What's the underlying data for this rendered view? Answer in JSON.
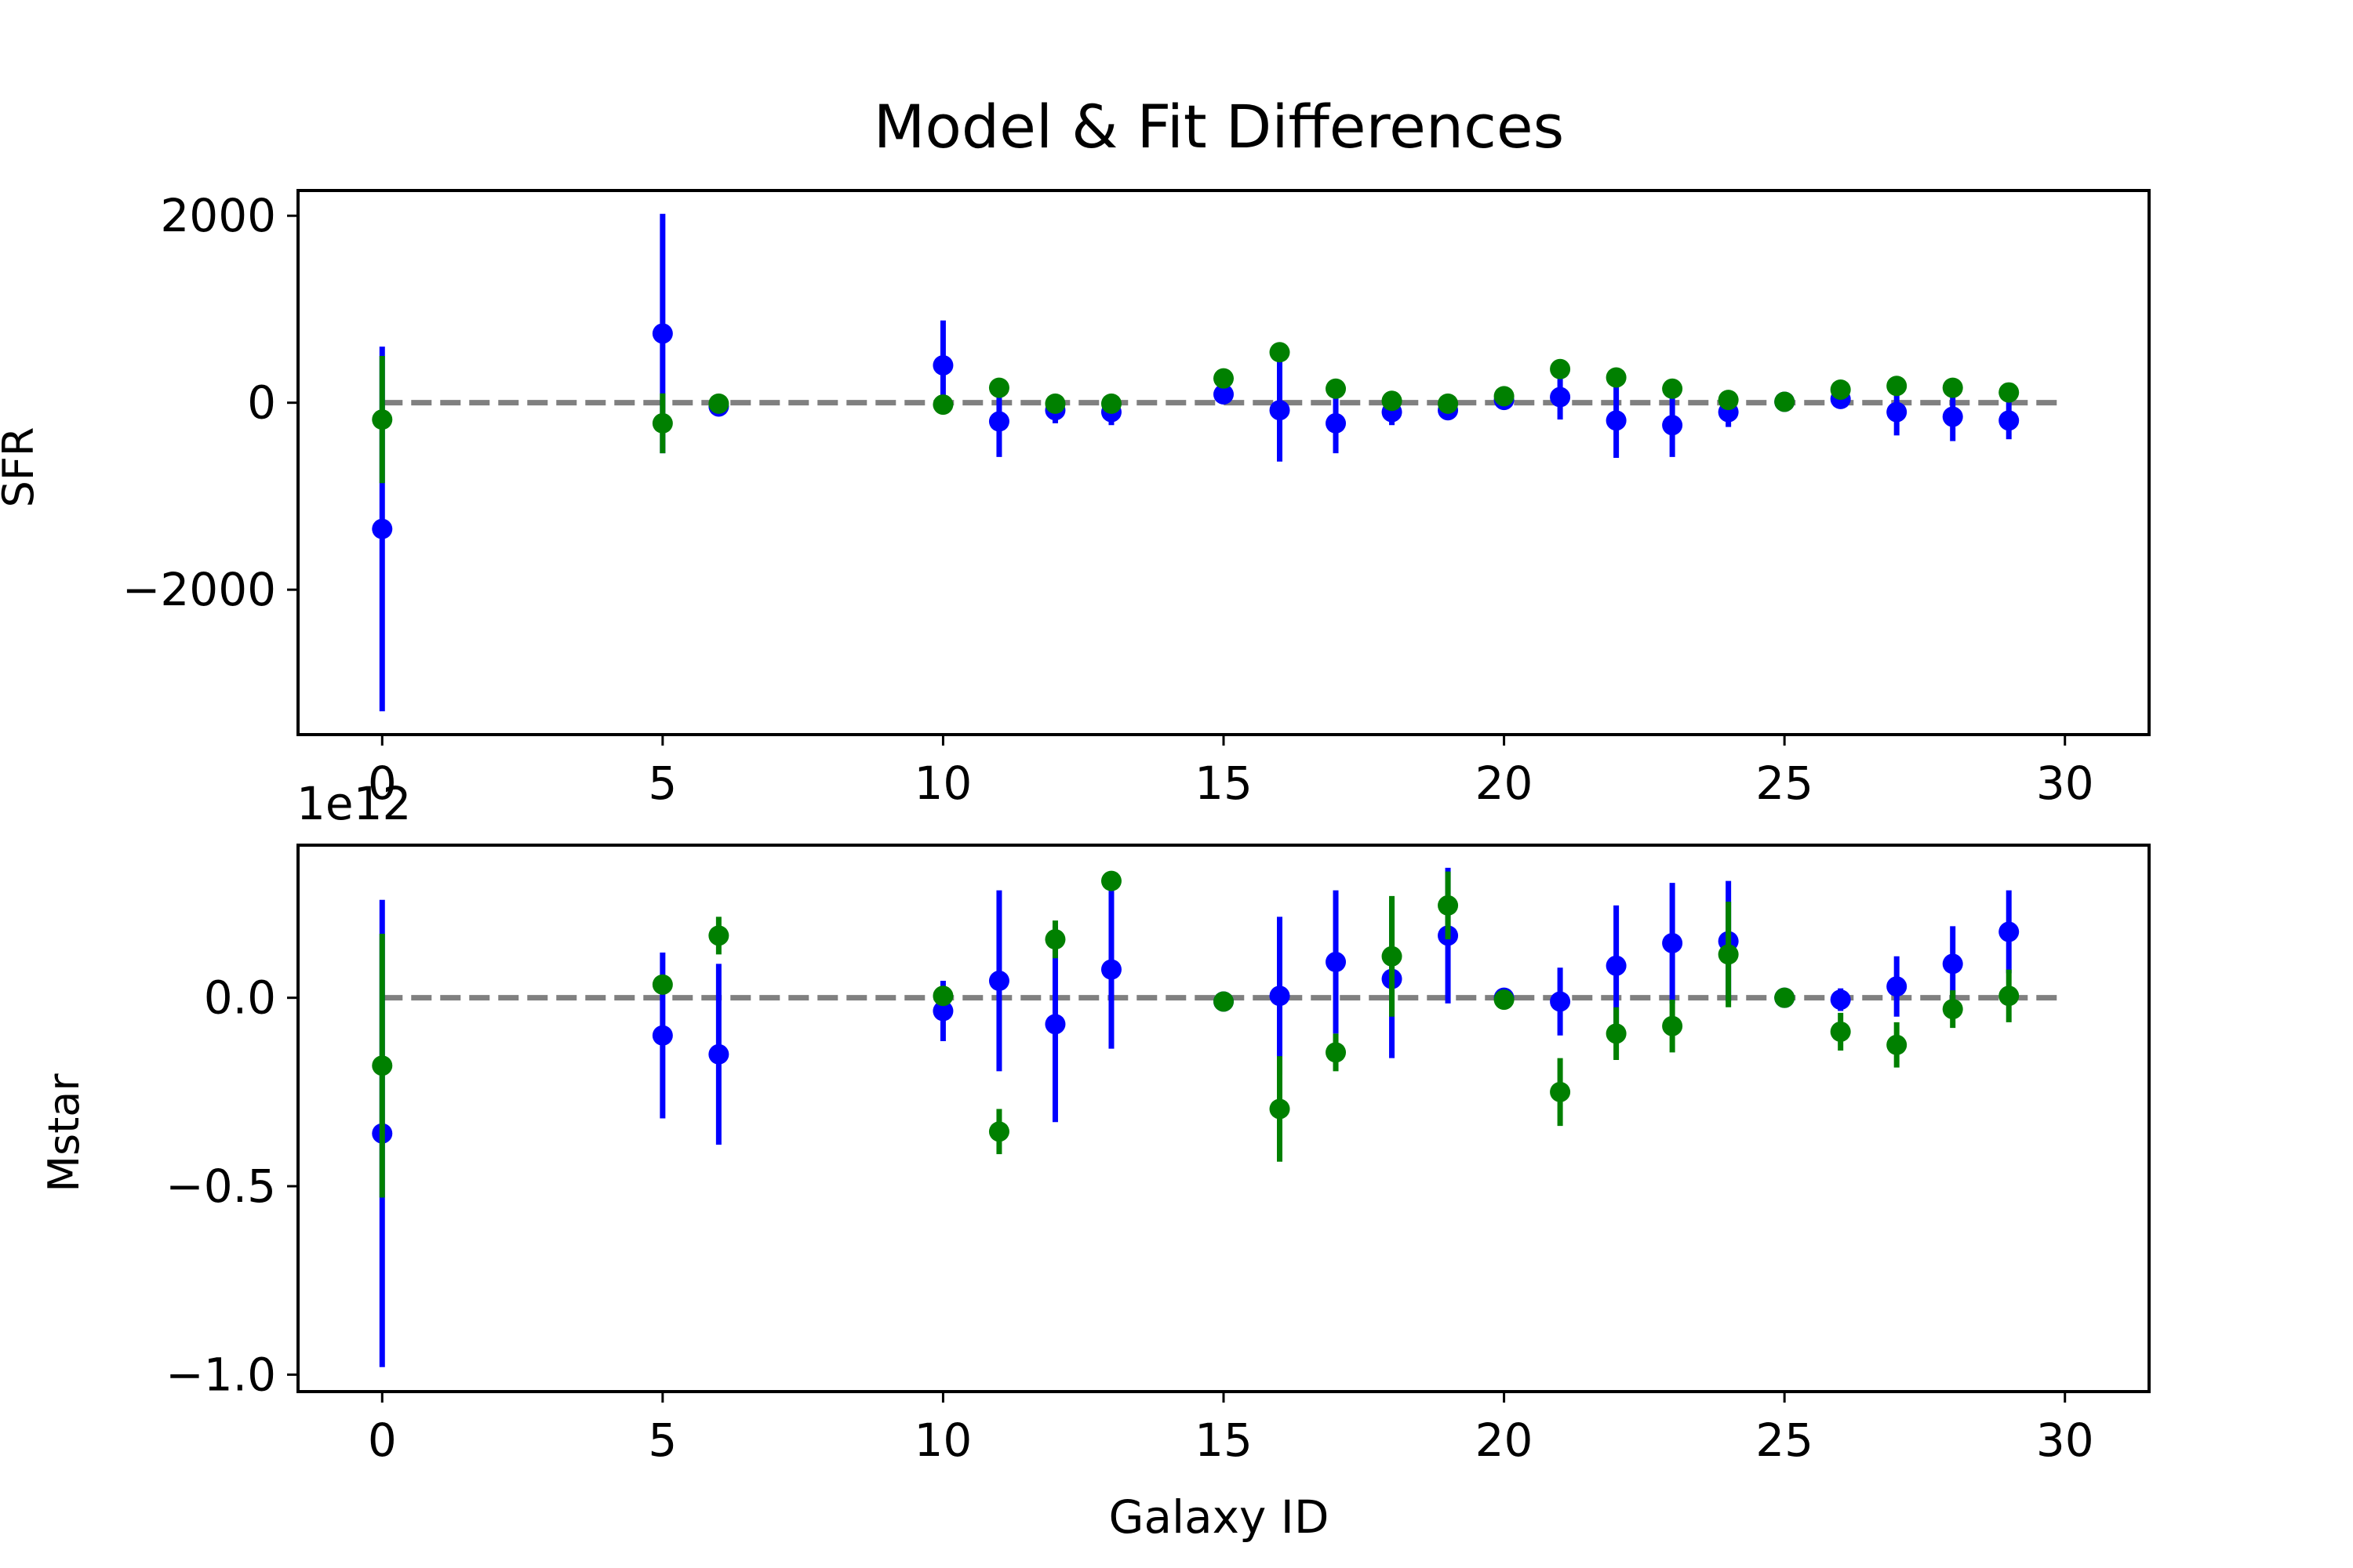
{
  "title": "Model & Fit Differences",
  "xlabel": "Galaxy ID",
  "colors": {
    "series_a": "#0000ff",
    "series_b": "#008000",
    "reference": "#808080"
  },
  "chart_data": [
    {
      "type": "scatter",
      "ylabel": "SFR",
      "xlim": [
        -1.5,
        31.5
      ],
      "ylim": [
        -3550,
        2270
      ],
      "xticks": [
        0,
        5,
        10,
        15,
        20,
        25,
        30
      ],
      "xtick_labels": [
        "0",
        "5",
        "10",
        "15",
        "20",
        "25",
        "30"
      ],
      "yticks": [
        -2000,
        0,
        2000
      ],
      "ytick_labels": [
        "−2000",
        "0",
        "2000"
      ],
      "reference_line": 0,
      "x": [
        0,
        5,
        6,
        10,
        11,
        12,
        13,
        15,
        16,
        17,
        18,
        19,
        20,
        21,
        22,
        23,
        24,
        25,
        26,
        27,
        28,
        29
      ],
      "series": [
        {
          "values": [
            -1350,
            740,
            -40,
            400,
            -200,
            -80,
            -100,
            90,
            -80,
            -220,
            -100,
            -80,
            30,
            60,
            -190,
            -240,
            -100,
            10,
            40,
            -100,
            -150,
            -190
          ],
          "errors": [
            1950,
            1280,
            40,
            480,
            380,
            140,
            140,
            100,
            550,
            320,
            140,
            100,
            40,
            240,
            400,
            340,
            160,
            40,
            60,
            250,
            260,
            200
          ]
        },
        {
          "values": [
            -180,
            -220,
            -10,
            -20,
            160,
            -10,
            -10,
            260,
            540,
            150,
            20,
            -10,
            70,
            360,
            270,
            150,
            30,
            10,
            140,
            180,
            160,
            110
          ],
          "errors": [
            680,
            320,
            40,
            40,
            40,
            40,
            40,
            40,
            40,
            40,
            40,
            40,
            40,
            40,
            40,
            40,
            40,
            40,
            40,
            40,
            40,
            40
          ]
        }
      ]
    },
    {
      "type": "scatter",
      "ylabel": "Mstar",
      "offset_label": "1e12",
      "xlim": [
        -1.5,
        31.5
      ],
      "ylim": [
        -1.045,
        0.405
      ],
      "xticks": [
        0,
        5,
        10,
        15,
        20,
        25,
        30
      ],
      "xtick_labels": [
        "0",
        "5",
        "10",
        "15",
        "20",
        "25",
        "30"
      ],
      "yticks": [
        -1.0,
        -0.5,
        0.0
      ],
      "ytick_labels": [
        "−1.0",
        "−0.5",
        "0.0"
      ],
      "reference_line": 0,
      "x": [
        0,
        5,
        6,
        10,
        11,
        12,
        13,
        15,
        16,
        17,
        18,
        19,
        20,
        21,
        22,
        23,
        24,
        25,
        26,
        27,
        28,
        29
      ],
      "series": [
        {
          "values": [
            -0.36,
            -0.1,
            -0.15,
            -0.035,
            0.045,
            -0.07,
            0.075,
            -0.01,
            0.005,
            0.095,
            0.05,
            0.165,
            0.0,
            -0.01,
            0.085,
            0.145,
            0.15,
            0.0,
            -0.005,
            0.03,
            0.09,
            0.175
          ],
          "errors": [
            0.62,
            0.22,
            0.24,
            0.08,
            0.24,
            0.26,
            0.21,
            0.02,
            0.21,
            0.19,
            0.21,
            0.18,
            0.02,
            0.09,
            0.16,
            0.16,
            0.16,
            0.02,
            0.03,
            0.08,
            0.1,
            0.11
          ]
        },
        {
          "values": [
            -0.18,
            0.035,
            0.165,
            0.005,
            -0.355,
            0.155,
            0.31,
            -0.01,
            -0.295,
            -0.145,
            0.11,
            0.245,
            -0.005,
            -0.25,
            -0.095,
            -0.075,
            0.115,
            0.0,
            -0.09,
            -0.125,
            -0.03,
            0.005
          ],
          "errors": [
            0.35,
            0.02,
            0.05,
            0.02,
            0.06,
            0.05,
            0.02,
            0.02,
            0.14,
            0.05,
            0.16,
            0.09,
            0.02,
            0.09,
            0.07,
            0.07,
            0.14,
            0.02,
            0.05,
            0.06,
            0.05,
            0.07
          ]
        }
      ]
    }
  ]
}
